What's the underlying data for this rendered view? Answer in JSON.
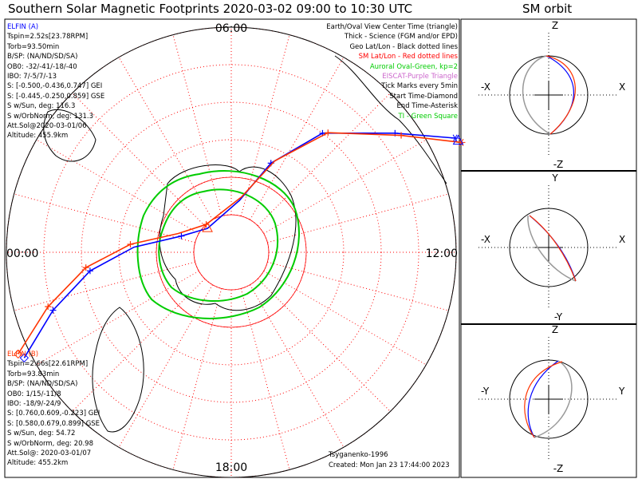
{
  "title": "Southern Solar Magnetic Footprints 2020-03-02 09:00 to 10:30 UTC",
  "sm_title": "SM orbit",
  "colors": {
    "elfin_a": "#0000ff",
    "elfin_b": "#ff3300",
    "aurora": "#00cc00",
    "grid": "#ff0000",
    "eiscat": "#cc66cc",
    "sm_orbit_gray": "#999999"
  },
  "polar_labels": {
    "top": "06:00",
    "left": "00:00",
    "right": "12:00",
    "bottom": "18:00"
  },
  "legend": [
    {
      "text": "Earth/Oval View Center Time (triangle)",
      "color": "#000000"
    },
    {
      "text": "Thick - Science (FGM and/or EPD)",
      "color": "#000000"
    },
    {
      "text": "Geo Lat/Lon - Black dotted lines",
      "color": "#000000"
    },
    {
      "text": "SM Lat/Lon - Red dotted lines",
      "color": "#ff0000"
    },
    {
      "text": "Auroral Oval-Green, kp=2",
      "color": "#00cc00"
    },
    {
      "text": "EISCAT-Purple Triangle",
      "color": "#cc66cc"
    },
    {
      "text": "Tick Marks every 5min",
      "color": "#000000"
    },
    {
      "text": "Start Time-Diamond",
      "color": "#000000"
    },
    {
      "text": "End Time-Asterisk",
      "color": "#000000"
    },
    {
      "text": "TI - Green Square",
      "color": "#00cc00"
    }
  ],
  "elfin_a": {
    "name": "ELFIN (A)",
    "lines": [
      "Tspin=2.52s[23.78RPM]",
      "Torb=93.50min",
      "B/SP: (NA/ND/SD/SA)",
      "OB0: -32/-41/-18/-40",
      "IBO: 7/-5/7/-13",
      "S: [-0.500,-0.436,0.747] GEI",
      "S: [-0.445,-0.250,0.859] GSE",
      "S w/Sun, deg: 116.3",
      "S w/OrbNorm, deg: 131.3",
      "Att.Sol@2020-03-01/06",
      "Altitude: 455.9km"
    ]
  },
  "elfin_b": {
    "name": "ELFIN (B)",
    "lines": [
      "Tspin=2.66s[22.61RPM]",
      "Torb=93.83min",
      "B/SP: (NA/ND/SD/SA)",
      "OB0: 1/15/-11/8",
      "IBO: -18/9/-24/9",
      "S: [0.760,0.609,-0.223] GEI",
      "S: [0.580,0.679,0.899] GSE",
      "S w/Sun, deg: 54.72",
      "S w/OrbNorm, deg: 20.98",
      "Att.Sol@: 2020-03-01/07",
      "Altitude: 455.2km"
    ]
  },
  "credits": {
    "model": "Tsyganenko-1996",
    "created": "Created: Mon Jan 23 17:44:00 2023"
  },
  "sm_panels": [
    {
      "top": "Z",
      "bottom": "-Z",
      "left": "-X",
      "right": "X"
    },
    {
      "top": "Y",
      "bottom": "-Y",
      "left": "-X",
      "right": "X"
    },
    {
      "top": "Z",
      "bottom": "-Z",
      "left": "-Y",
      "right": "Y"
    }
  ],
  "chart_data": {
    "type": "scatter",
    "projection": "south-polar, SM",
    "grid": "on",
    "colatitude_circles_deg": [
      10,
      20,
      30,
      40,
      50,
      60
    ],
    "tracks": [
      {
        "name": "ELFIN (A)",
        "color": "#0000ff",
        "points_mlt_colat": [
          [
            10.2,
            67
          ],
          [
            9.6,
            54
          ],
          [
            8.5,
            40
          ],
          [
            7.6,
            26
          ],
          [
            6.6,
            14
          ],
          [
            3.0,
            9
          ],
          [
            1.2,
            14
          ],
          [
            0.2,
            26
          ],
          [
            23.5,
            38
          ],
          [
            22.8,
            50
          ],
          [
            22.2,
            62
          ]
        ],
        "tick_marks_mlt_colat": [
          [
            9.6,
            54
          ],
          [
            8.5,
            40
          ],
          [
            7.6,
            26
          ],
          [
            1.2,
            14
          ],
          [
            23.5,
            38
          ],
          [
            22.8,
            50
          ]
        ]
      },
      {
        "name": "ELFIN (B)",
        "color": "#ff3300",
        "points_mlt_colat": [
          [
            10.3,
            68
          ],
          [
            9.7,
            55
          ],
          [
            8.6,
            41
          ],
          [
            7.7,
            27
          ],
          [
            6.7,
            15
          ],
          [
            3.2,
            10
          ],
          [
            1.3,
            15
          ],
          [
            0.3,
            27
          ],
          [
            23.6,
            39
          ],
          [
            22.9,
            51
          ],
          [
            22.3,
            63
          ]
        ],
        "tick_marks_mlt_colat": [
          [
            9.7,
            55
          ],
          [
            8.6,
            41
          ],
          [
            3.2,
            10
          ],
          [
            0.3,
            27
          ],
          [
            23.6,
            39
          ],
          [
            22.9,
            51
          ]
        ]
      }
    ],
    "auroral_oval_kp": 2
  }
}
